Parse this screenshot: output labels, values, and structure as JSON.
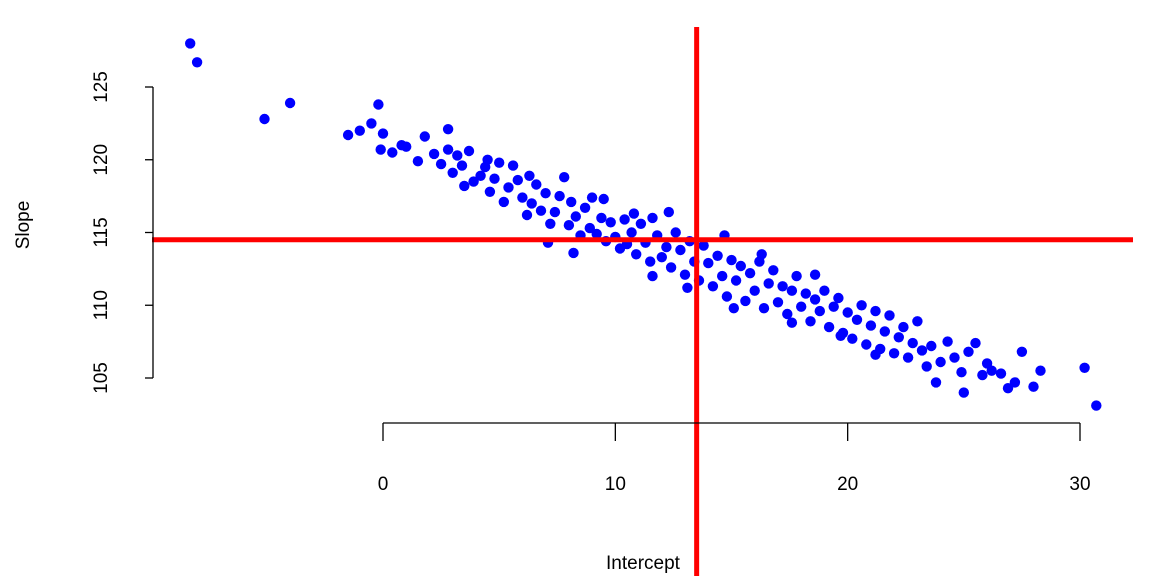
{
  "chart_data": {
    "type": "scatter",
    "title": "",
    "xlabel": "Intercept",
    "ylabel": "Slope",
    "xlim": [
      -9.5,
      32.5
    ],
    "ylim": [
      102.3,
      129.0
    ],
    "x_ticks": [
      0,
      10,
      20,
      30
    ],
    "y_ticks": [
      105,
      110,
      115,
      120,
      125
    ],
    "x_tick_labels": [
      "0",
      "10",
      "20",
      "30"
    ],
    "y_tick_labels": [
      "105",
      "110",
      "115",
      "120",
      "125"
    ],
    "point_color": "#0000ff",
    "reference_line_color": "#ff0000",
    "reference_lines": {
      "vertical_x": 13.5,
      "horizontal_y": 114.5
    },
    "grid": false,
    "legend": "none",
    "series": [
      {
        "values": [
          [
            -8.3,
            128.0
          ],
          [
            -8.0,
            126.7
          ],
          [
            -5.1,
            122.8
          ],
          [
            -4.0,
            123.9
          ],
          [
            -1.5,
            121.7
          ],
          [
            -1.0,
            122.0
          ],
          [
            -0.5,
            122.5
          ],
          [
            -0.2,
            123.8
          ],
          [
            0.0,
            121.8
          ],
          [
            -0.1,
            120.7
          ],
          [
            0.4,
            120.5
          ],
          [
            0.8,
            121.0
          ],
          [
            1.0,
            120.9
          ],
          [
            1.5,
            119.9
          ],
          [
            1.8,
            121.6
          ],
          [
            2.2,
            120.4
          ],
          [
            2.5,
            119.7
          ],
          [
            2.8,
            120.7
          ],
          [
            3.0,
            119.1
          ],
          [
            3.2,
            120.3
          ],
          [
            3.4,
            119.6
          ],
          [
            3.5,
            118.2
          ],
          [
            3.7,
            120.6
          ],
          [
            3.9,
            118.5
          ],
          [
            4.2,
            118.9
          ],
          [
            4.4,
            119.5
          ],
          [
            4.6,
            117.8
          ],
          [
            4.8,
            118.7
          ],
          [
            5.0,
            119.8
          ],
          [
            5.2,
            117.1
          ],
          [
            5.4,
            118.1
          ],
          [
            5.6,
            119.6
          ],
          [
            5.8,
            118.6
          ],
          [
            6.0,
            117.4
          ],
          [
            6.2,
            116.2
          ],
          [
            6.4,
            117.0
          ],
          [
            6.6,
            118.3
          ],
          [
            6.8,
            116.5
          ],
          [
            7.0,
            117.7
          ],
          [
            7.2,
            115.6
          ],
          [
            7.4,
            116.4
          ],
          [
            7.6,
            117.5
          ],
          [
            7.8,
            118.8
          ],
          [
            8.0,
            115.5
          ],
          [
            8.1,
            117.1
          ],
          [
            8.3,
            116.1
          ],
          [
            8.5,
            114.8
          ],
          [
            8.7,
            116.7
          ],
          [
            8.9,
            115.3
          ],
          [
            9.0,
            117.4
          ],
          [
            9.2,
            114.9
          ],
          [
            9.4,
            116.0
          ],
          [
            9.6,
            114.4
          ],
          [
            9.8,
            115.7
          ],
          [
            10.0,
            114.7
          ],
          [
            10.2,
            113.9
          ],
          [
            10.4,
            115.9
          ],
          [
            10.5,
            114.2
          ],
          [
            10.7,
            115.0
          ],
          [
            10.9,
            113.5
          ],
          [
            11.1,
            115.6
          ],
          [
            11.3,
            114.3
          ],
          [
            11.5,
            113.0
          ],
          [
            11.6,
            116.0
          ],
          [
            11.8,
            114.8
          ],
          [
            12.0,
            113.3
          ],
          [
            12.2,
            114.0
          ],
          [
            12.4,
            112.6
          ],
          [
            12.6,
            115.0
          ],
          [
            12.8,
            113.8
          ],
          [
            13.0,
            112.1
          ],
          [
            13.2,
            114.4
          ],
          [
            13.4,
            113.0
          ],
          [
            13.6,
            111.7
          ],
          [
            13.8,
            114.1
          ],
          [
            14.0,
            112.9
          ],
          [
            14.2,
            111.3
          ],
          [
            14.4,
            113.4
          ],
          [
            14.6,
            112.0
          ],
          [
            14.8,
            110.6
          ],
          [
            15.0,
            113.1
          ],
          [
            15.2,
            111.7
          ],
          [
            15.4,
            112.7
          ],
          [
            15.6,
            110.3
          ],
          [
            15.8,
            112.2
          ],
          [
            16.0,
            111.0
          ],
          [
            16.2,
            113.0
          ],
          [
            16.4,
            109.8
          ],
          [
            16.6,
            111.5
          ],
          [
            16.8,
            112.4
          ],
          [
            17.0,
            110.2
          ],
          [
            17.2,
            111.3
          ],
          [
            17.4,
            109.4
          ],
          [
            17.6,
            111.0
          ],
          [
            17.8,
            112.0
          ],
          [
            18.0,
            109.9
          ],
          [
            18.2,
            110.8
          ],
          [
            18.4,
            108.9
          ],
          [
            18.6,
            110.4
          ],
          [
            18.8,
            109.6
          ],
          [
            19.0,
            111.0
          ],
          [
            19.2,
            108.5
          ],
          [
            19.4,
            109.9
          ],
          [
            19.6,
            110.5
          ],
          [
            19.8,
            108.1
          ],
          [
            20.0,
            109.5
          ],
          [
            20.2,
            107.7
          ],
          [
            20.4,
            109.0
          ],
          [
            20.6,
            110.0
          ],
          [
            20.8,
            107.3
          ],
          [
            21.0,
            108.6
          ],
          [
            21.2,
            109.6
          ],
          [
            21.4,
            107.0
          ],
          [
            21.6,
            108.2
          ],
          [
            21.8,
            109.3
          ],
          [
            22.0,
            106.7
          ],
          [
            22.2,
            107.8
          ],
          [
            22.4,
            108.5
          ],
          [
            22.6,
            106.4
          ],
          [
            22.8,
            107.4
          ],
          [
            23.0,
            108.9
          ],
          [
            23.2,
            106.9
          ],
          [
            23.4,
            105.8
          ],
          [
            23.6,
            107.2
          ],
          [
            23.8,
            104.7
          ],
          [
            24.0,
            106.1
          ],
          [
            24.3,
            107.5
          ],
          [
            24.6,
            106.4
          ],
          [
            24.9,
            105.4
          ],
          [
            25.0,
            104.0
          ],
          [
            25.2,
            106.8
          ],
          [
            25.5,
            107.4
          ],
          [
            25.8,
            105.2
          ],
          [
            26.0,
            106.0
          ],
          [
            26.2,
            105.5
          ],
          [
            26.6,
            105.3
          ],
          [
            26.9,
            104.3
          ],
          [
            27.2,
            104.7
          ],
          [
            27.5,
            106.8
          ],
          [
            28.0,
            104.4
          ],
          [
            28.3,
            105.5
          ],
          [
            30.2,
            105.7
          ],
          [
            30.7,
            103.1
          ],
          [
            12.3,
            116.4
          ],
          [
            10.8,
            116.3
          ],
          [
            9.5,
            117.3
          ],
          [
            14.7,
            114.8
          ],
          [
            16.3,
            113.5
          ],
          [
            18.6,
            112.1
          ],
          [
            7.1,
            114.3
          ],
          [
            8.2,
            113.6
          ],
          [
            11.6,
            112.0
          ],
          [
            13.1,
            111.2
          ],
          [
            15.1,
            109.8
          ],
          [
            17.6,
            108.8
          ],
          [
            19.7,
            107.9
          ],
          [
            21.2,
            106.6
          ],
          [
            6.3,
            118.9
          ],
          [
            4.5,
            120.0
          ],
          [
            2.8,
            122.1
          ]
        ]
      }
    ]
  }
}
